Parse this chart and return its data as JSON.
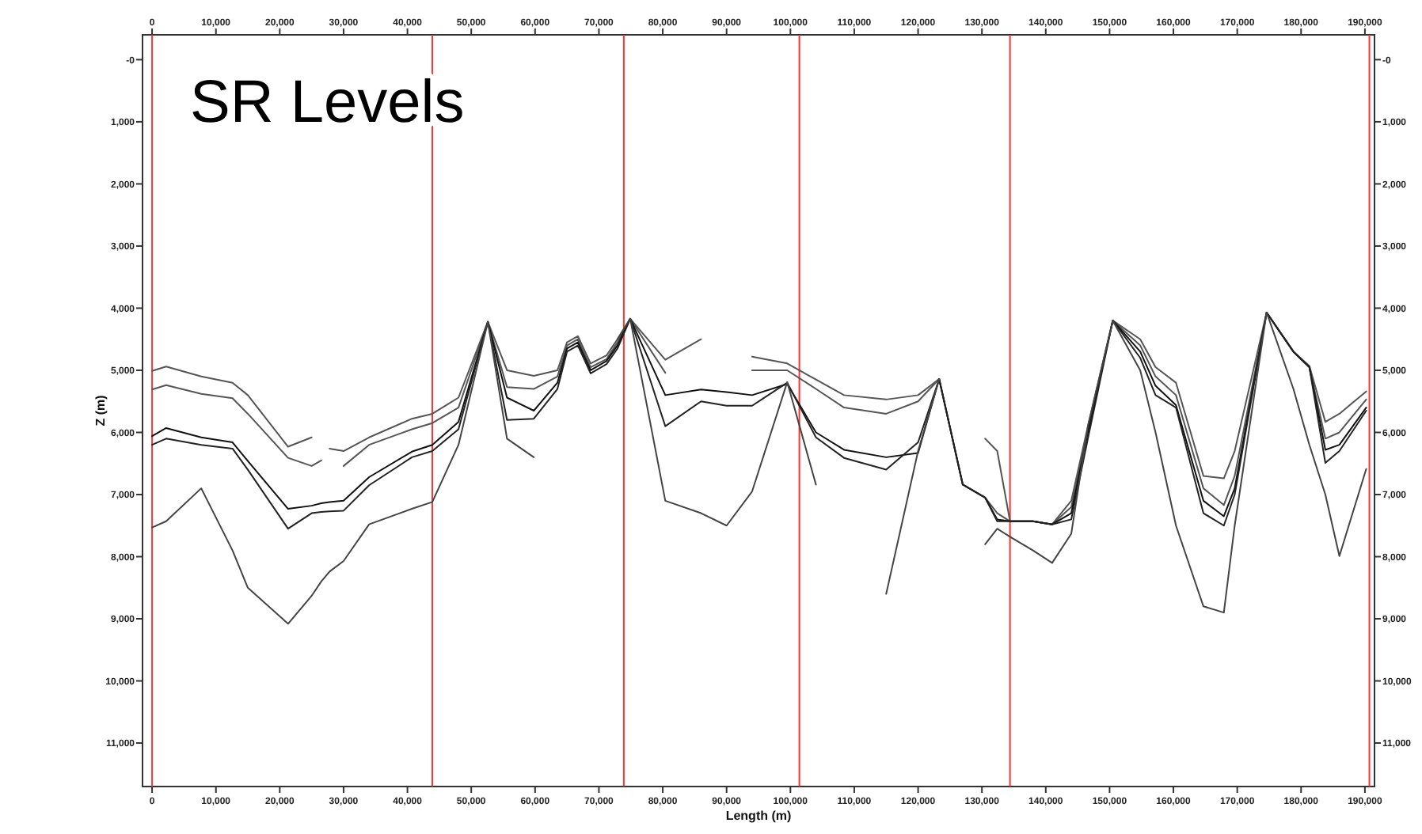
{
  "chart_data": {
    "type": "line",
    "title": "SR Levels",
    "xlabel": "Length (m)",
    "ylabel": "Z (m)",
    "xlim": [
      -1500,
      191500
    ],
    "ylim": [
      11700,
      -400
    ],
    "x2lim": [
      -1500,
      191500
    ],
    "y2lim": [
      11700,
      -400
    ],
    "xticks": [
      0,
      {
        "value": 10000,
        "label": "10,000"
      },
      {
        "value": 20000,
        "label": "20,000"
      },
      {
        "value": 30000,
        "label": "30,000"
      },
      {
        "value": 40000,
        "label": "40,000"
      },
      {
        "value": 50000,
        "label": "50,000"
      },
      {
        "value": 60000,
        "label": "60,000"
      },
      {
        "value": 70000,
        "label": "70,000"
      },
      {
        "value": 80000,
        "label": "80,000"
      },
      {
        "value": 90000,
        "label": "90,000"
      },
      {
        "value": 100000,
        "label": "100,000"
      },
      {
        "value": 110000,
        "label": "110,000"
      },
      {
        "value": 120000,
        "label": "120,000"
      },
      {
        "value": 130000,
        "label": "130,000"
      },
      {
        "value": 140000,
        "label": "140,000"
      },
      {
        "value": 150000,
        "label": "150,000"
      },
      {
        "value": 160000,
        "label": "160,000"
      },
      {
        "value": 170000,
        "label": "170,000"
      },
      {
        "value": 180000,
        "label": "180,000"
      },
      {
        "value": 190000,
        "label": "190,000"
      }
    ],
    "x2ticks": [
      0,
      {
        "value": 10000,
        "label": "10,000"
      },
      {
        "value": 20000,
        "label": "20,000"
      },
      {
        "value": 30000,
        "label": "30,000"
      },
      {
        "value": 40000,
        "label": "40,000"
      },
      {
        "value": 50000,
        "label": "50,000"
      },
      {
        "value": 60000,
        "label": "60,000"
      },
      {
        "value": 70000,
        "label": "70,000"
      },
      {
        "value": 80000,
        "label": "80,000"
      },
      {
        "value": 90000,
        "label": "90,000"
      },
      {
        "value": 100000,
        "label": "100,000"
      },
      {
        "value": 110000,
        "label": "110,000"
      },
      {
        "value": 120000,
        "label": "120,000"
      },
      {
        "value": 130000,
        "label": "130,000"
      },
      {
        "value": 140000,
        "label": "140,000"
      },
      {
        "value": 150000,
        "label": "150,000"
      },
      {
        "value": 160000,
        "label": "160,000"
      },
      {
        "value": 170000,
        "label": "170,000"
      },
      {
        "value": 180000,
        "label": "180,000"
      },
      {
        "value": 190000,
        "label": "190,000"
      }
    ],
    "yticks": [
      {
        "value": 0,
        "label": "-0"
      },
      {
        "value": 1000,
        "label": "1,000"
      },
      {
        "value": 2000,
        "label": "2,000"
      },
      {
        "value": 3000,
        "label": "3,000"
      },
      {
        "value": 4000,
        "label": "4,000"
      },
      {
        "value": 5000,
        "label": "5,000"
      },
      {
        "value": 6000,
        "label": "6,000"
      },
      {
        "value": 7000,
        "label": "7,000"
      },
      {
        "value": 8000,
        "label": "8,000"
      },
      {
        "value": 9000,
        "label": "9,000"
      },
      {
        "value": 10000,
        "label": "10,000"
      },
      {
        "value": 11000,
        "label": "11,000"
      }
    ],
    "y2ticks": [
      {
        "value": 0,
        "label": "-0"
      },
      {
        "value": 1000,
        "label": "1,000"
      },
      {
        "value": 2000,
        "label": "2,000"
      },
      {
        "value": 3000,
        "label": "3,000"
      },
      {
        "value": 4000,
        "label": "4,000"
      },
      {
        "value": 5000,
        "label": "5,000"
      },
      {
        "value": 6000,
        "label": "6,000"
      },
      {
        "value": 7000,
        "label": "7,000"
      },
      {
        "value": 8000,
        "label": "8,000"
      },
      {
        "value": 9000,
        "label": "9,000"
      },
      {
        "value": 10000,
        "label": "10,000"
      },
      {
        "value": 11000,
        "label": "11,000"
      }
    ],
    "x": [
      0,
      2200,
      7700,
      12600,
      15000,
      21300,
      25000,
      26500,
      27800,
      30000,
      34000,
      40700,
      43900,
      48000,
      52600,
      55600,
      59800,
      63500,
      65000,
      66700,
      68700,
      71200,
      72900,
      74900,
      80400,
      86000,
      90000,
      94000,
      99500,
      104000,
      108400,
      115000,
      120000,
      123300,
      127000,
      130500,
      132400,
      134400,
      138000,
      141000,
      144000,
      146600,
      150500,
      154800,
      157200,
      160400,
      164700,
      167900,
      169600,
      174600,
      178800,
      181300,
      183800,
      186000,
      190200
    ],
    "series": [
      {
        "color": "#555555",
        "values": [
          5010,
          4940,
          5100,
          5200,
          5400,
          6230,
          6080,
          null,
          6260,
          6300,
          6080,
          5780,
          5700,
          5440,
          4220,
          5000,
          5090,
          5000,
          4550,
          4450,
          4890,
          4760,
          4500,
          4170,
          4830,
          4500,
          null,
          4780,
          4890,
          5150,
          5400,
          5470,
          5400,
          5140,
          null,
          6100,
          6300,
          7430,
          7430,
          7480,
          7100,
          5900,
          4200,
          4500,
          4950,
          5200,
          6700,
          6740,
          6300,
          4070,
          4700,
          4930,
          5830,
          5700,
          5340
        ]
      },
      {
        "color": "#555555",
        "values": [
          5310,
          5240,
          5380,
          5450,
          5700,
          6410,
          6540,
          6450,
          null,
          6540,
          6200,
          5950,
          5850,
          5600,
          4220,
          5270,
          5300,
          5100,
          4600,
          4500,
          4950,
          4820,
          4550,
          4170,
          5040,
          null,
          null,
          5000,
          5000,
          5300,
          5600,
          5700,
          5500,
          5140,
          6840,
          7050,
          7300,
          7430,
          7430,
          7480,
          7200,
          5950,
          4200,
          4600,
          5100,
          5400,
          6900,
          7170,
          6700,
          4070,
          4700,
          4950,
          6100,
          6000,
          5470
        ]
      },
      {
        "color": "#111111",
        "values": [
          6060,
          5930,
          6080,
          6160,
          6460,
          7230,
          7180,
          7140,
          7120,
          7100,
          6720,
          6310,
          6200,
          5830,
          4220,
          5440,
          5650,
          5200,
          4650,
          4550,
          5000,
          4850,
          4600,
          4170,
          5400,
          5310,
          5350,
          5400,
          5220,
          6000,
          6280,
          6400,
          6330,
          5140,
          6840,
          7050,
          7400,
          7430,
          7430,
          7480,
          7300,
          6000,
          4200,
          4700,
          5250,
          5560,
          7100,
          7350,
          6900,
          4070,
          4700,
          4950,
          6280,
          6200,
          5600
        ]
      },
      {
        "color": "#222222",
        "values": [
          6200,
          6100,
          6200,
          6260,
          6600,
          7550,
          7300,
          7280,
          7270,
          7260,
          6850,
          6400,
          6300,
          5950,
          4220,
          5800,
          5780,
          5300,
          4700,
          4600,
          5050,
          4900,
          4650,
          4170,
          5900,
          5500,
          5570,
          5570,
          5200,
          6080,
          6410,
          6600,
          6160,
          5140,
          6840,
          7050,
          7430,
          7430,
          7430,
          7480,
          7400,
          6100,
          4200,
          4800,
          5400,
          5600,
          7300,
          7500,
          7000,
          4070,
          4700,
          4950,
          6490,
          6300,
          5650
        ]
      },
      {
        "color": "#444444",
        "values": [
          7530,
          7430,
          6900,
          7900,
          8500,
          9080,
          8630,
          8400,
          8240,
          8070,
          7480,
          7230,
          7120,
          6200,
          4220,
          6100,
          6400,
          null,
          null,
          null,
          null,
          null,
          4500,
          4170,
          7100,
          7300,
          7500,
          6950,
          5190,
          6840,
          null,
          8600,
          6300,
          5140,
          null,
          7800,
          7550,
          7680,
          7900,
          8100,
          7630,
          5900,
          4200,
          5000,
          6000,
          7500,
          8800,
          8900,
          7500,
          4070,
          5300,
          6200,
          7000,
          7990,
          6590
        ]
      }
    ],
    "ref_lines": [
      {
        "axis": "x",
        "value": 0,
        "color": "#ff3333"
      },
      {
        "axis": "x",
        "value": 43900,
        "color": "#ff3333"
      },
      {
        "axis": "x",
        "value": 73900,
        "color": "#ff3333"
      },
      {
        "axis": "x",
        "value": 101400,
        "color": "#ff3333"
      },
      {
        "axis": "x",
        "value": 134400,
        "color": "#ff3333"
      },
      {
        "axis": "x",
        "value": 190700,
        "color": "#ff3333"
      }
    ]
  }
}
